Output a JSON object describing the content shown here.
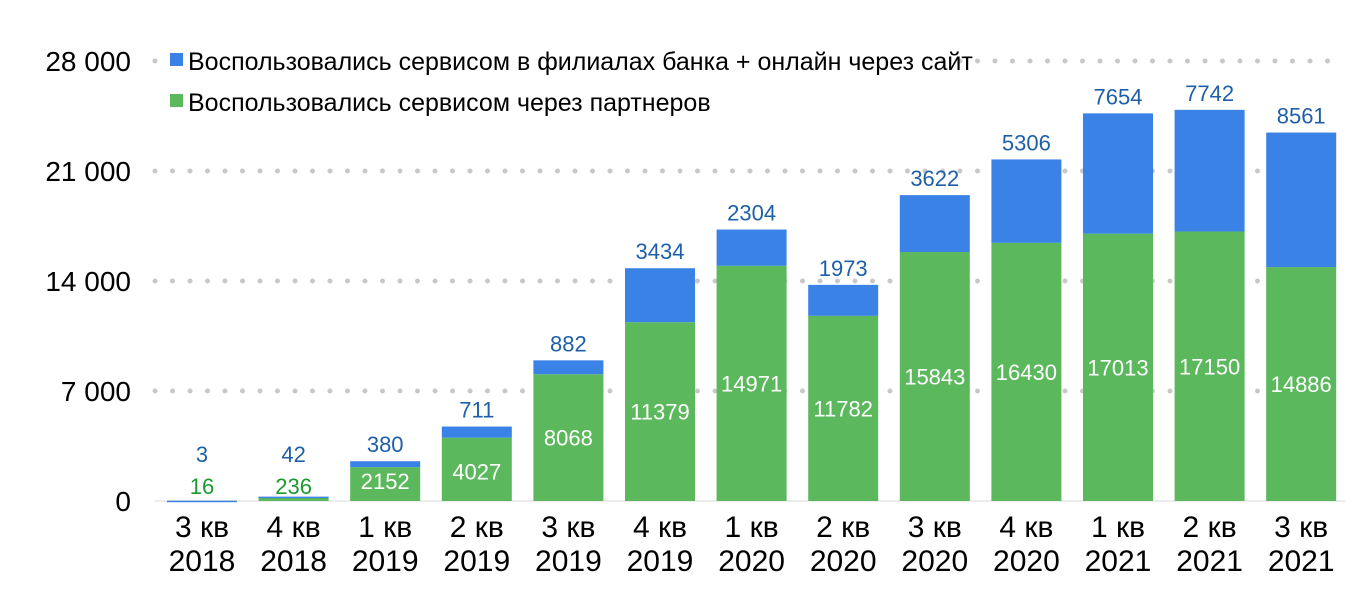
{
  "chart_data": {
    "type": "bar",
    "stacked": true,
    "categories": [
      [
        "3 кв",
        "2018"
      ],
      [
        "4 кв",
        "2018"
      ],
      [
        "1 кв",
        "2019"
      ],
      [
        "2 кв",
        "2019"
      ],
      [
        "3 кв",
        "2019"
      ],
      [
        "4 кв",
        "2019"
      ],
      [
        "1 кв",
        "2020"
      ],
      [
        "2 кв",
        "2020"
      ],
      [
        "3 кв",
        "2020"
      ],
      [
        "4 кв",
        "2020"
      ],
      [
        "1 кв",
        "2021"
      ],
      [
        "2 кв",
        "2021"
      ],
      [
        "3 кв",
        "2021"
      ]
    ],
    "series": [
      {
        "name": "Воспользовались сервисом через партнеров",
        "color": "#5cb85c",
        "values": [
          16,
          236,
          2152,
          4027,
          8068,
          11379,
          14971,
          11782,
          15843,
          16430,
          17013,
          17150,
          14886
        ]
      },
      {
        "name": "Воспользовались сервисом в филиалах банка + онлайн через сайт",
        "color": "#3b82e6",
        "values": [
          3,
          42,
          380,
          711,
          882,
          3434,
          2304,
          1973,
          3622,
          5306,
          7654,
          7742,
          8561
        ]
      }
    ],
    "yticks": [
      "0",
      "7 000",
      "14 000",
      "21 000",
      "28 000"
    ],
    "ytick_values": [
      0,
      7000,
      14000,
      21000,
      28000
    ],
    "ylim": [
      0,
      28000
    ],
    "grid": "dotted",
    "legend_position": "top-left"
  }
}
